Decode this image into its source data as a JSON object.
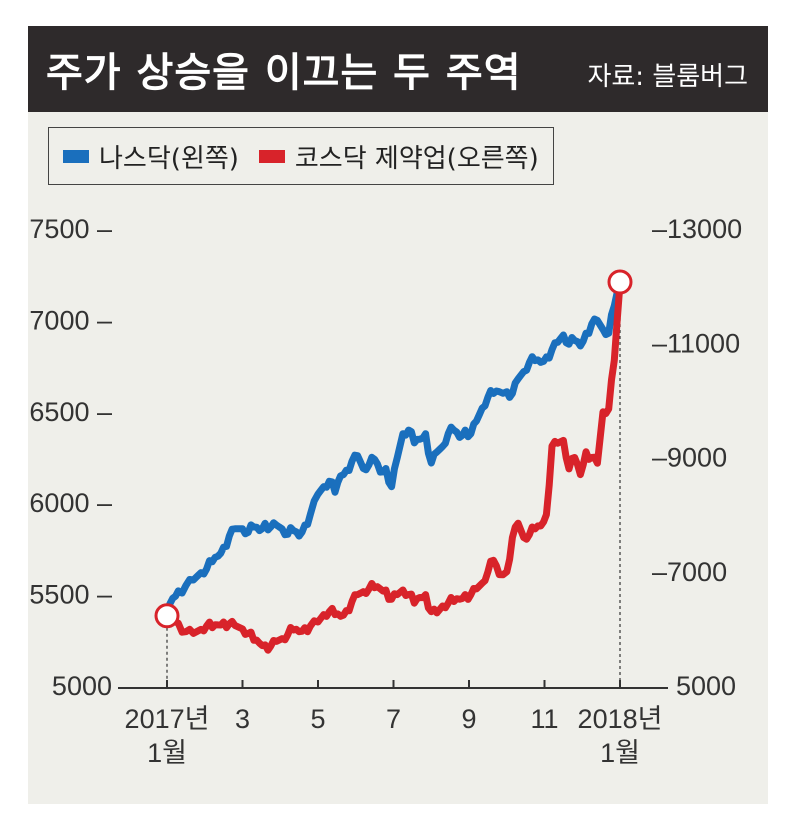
{
  "title": "주가 상승을 이끄는 두 주역",
  "source": "자료: 블룸버그",
  "colors": {
    "nasdaq": "#1a6fbd",
    "kosdaq_pharma": "#d8232a"
  },
  "chart_data": {
    "type": "line",
    "title": "주가 상승을 이끄는 두 주역",
    "legend_position": "top-left",
    "grid": false,
    "left_axis": {
      "min": 5000,
      "max": 7500,
      "ticks": [
        5000,
        5500,
        6000,
        6500,
        7000,
        7500
      ]
    },
    "right_axis": {
      "min": 5000,
      "max": 13000,
      "ticks": [
        5000,
        7000,
        9000,
        11000,
        13000
      ]
    },
    "x_ticks": [
      {
        "month": 1,
        "line1": "2017년",
        "line2": "1월"
      },
      {
        "month": 3,
        "line1": "3",
        "line2": ""
      },
      {
        "month": 5,
        "line1": "5",
        "line2": ""
      },
      {
        "month": 7,
        "line1": "7",
        "line2": ""
      },
      {
        "month": 9,
        "line1": "9",
        "line2": ""
      },
      {
        "month": 11,
        "line1": "11",
        "line2": ""
      },
      {
        "month": 13,
        "line1": "2018년",
        "line2": "1월"
      }
    ],
    "series": [
      {
        "name": "나스닥(왼쪽)",
        "axis": "left",
        "color": "#1a6fbd",
        "points": [
          [
            1.0,
            5400
          ],
          [
            1.15,
            5480
          ],
          [
            1.3,
            5520
          ],
          [
            1.5,
            5550
          ],
          [
            1.7,
            5580
          ],
          [
            1.9,
            5620
          ],
          [
            2.05,
            5640
          ],
          [
            2.2,
            5680
          ],
          [
            2.35,
            5710
          ],
          [
            2.5,
            5760
          ],
          [
            2.65,
            5820
          ],
          [
            2.8,
            5860
          ],
          [
            3.0,
            5860
          ],
          [
            3.15,
            5840
          ],
          [
            3.3,
            5870
          ],
          [
            3.45,
            5850
          ],
          [
            3.6,
            5890
          ],
          [
            3.75,
            5870
          ],
          [
            3.9,
            5880
          ],
          [
            4.05,
            5860
          ],
          [
            4.2,
            5830
          ],
          [
            4.35,
            5850
          ],
          [
            4.5,
            5820
          ],
          [
            4.65,
            5880
          ],
          [
            4.8,
            5940
          ],
          [
            5.0,
            6050
          ],
          [
            5.15,
            6090
          ],
          [
            5.3,
            6120
          ],
          [
            5.45,
            6060
          ],
          [
            5.6,
            6150
          ],
          [
            5.75,
            6180
          ],
          [
            5.9,
            6230
          ],
          [
            6.05,
            6260
          ],
          [
            6.2,
            6190
          ],
          [
            6.35,
            6210
          ],
          [
            6.5,
            6240
          ],
          [
            6.65,
            6170
          ],
          [
            6.8,
            6190
          ],
          [
            6.95,
            6090
          ],
          [
            7.1,
            6250
          ],
          [
            7.25,
            6380
          ],
          [
            7.4,
            6400
          ],
          [
            7.55,
            6330
          ],
          [
            7.7,
            6350
          ],
          [
            7.85,
            6380
          ],
          [
            8.0,
            6220
          ],
          [
            8.15,
            6280
          ],
          [
            8.3,
            6310
          ],
          [
            8.45,
            6380
          ],
          [
            8.6,
            6400
          ],
          [
            8.75,
            6360
          ],
          [
            8.9,
            6400
          ],
          [
            9.05,
            6380
          ],
          [
            9.2,
            6450
          ],
          [
            9.35,
            6520
          ],
          [
            9.5,
            6580
          ],
          [
            9.65,
            6600
          ],
          [
            9.8,
            6610
          ],
          [
            10.0,
            6610
          ],
          [
            10.15,
            6600
          ],
          [
            10.3,
            6680
          ],
          [
            10.45,
            6720
          ],
          [
            10.6,
            6770
          ],
          [
            10.75,
            6780
          ],
          [
            10.9,
            6770
          ],
          [
            11.05,
            6800
          ],
          [
            11.2,
            6840
          ],
          [
            11.35,
            6880
          ],
          [
            11.5,
            6920
          ],
          [
            11.65,
            6870
          ],
          [
            11.8,
            6890
          ],
          [
            11.95,
            6860
          ],
          [
            12.1,
            6930
          ],
          [
            12.25,
            6980
          ],
          [
            12.4,
            7000
          ],
          [
            12.55,
            6950
          ],
          [
            12.7,
            6930
          ],
          [
            12.85,
            7080
          ],
          [
            13.0,
            7210
          ]
        ]
      },
      {
        "name": "코스닥 제약업(오른쪽)",
        "axis": "right",
        "color": "#d8232a",
        "points": [
          [
            1.0,
            6230
          ],
          [
            1.15,
            6200
          ],
          [
            1.3,
            6100
          ],
          [
            1.5,
            5950
          ],
          [
            1.7,
            5920
          ],
          [
            1.9,
            5990
          ],
          [
            2.05,
            6050
          ],
          [
            2.2,
            6020
          ],
          [
            2.35,
            6070
          ],
          [
            2.5,
            6120
          ],
          [
            2.65,
            6090
          ],
          [
            2.8,
            6060
          ],
          [
            3.0,
            6000
          ],
          [
            3.15,
            5920
          ],
          [
            3.3,
            5800
          ],
          [
            3.45,
            5750
          ],
          [
            3.6,
            5720
          ],
          [
            3.75,
            5700
          ],
          [
            3.9,
            5780
          ],
          [
            4.05,
            5830
          ],
          [
            4.2,
            5900
          ],
          [
            4.35,
            5980
          ],
          [
            4.5,
            5950
          ],
          [
            4.65,
            6020
          ],
          [
            4.8,
            6050
          ],
          [
            5.0,
            6120
          ],
          [
            5.15,
            6250
          ],
          [
            5.3,
            6300
          ],
          [
            5.45,
            6250
          ],
          [
            5.6,
            6220
          ],
          [
            5.75,
            6320
          ],
          [
            5.9,
            6480
          ],
          [
            6.05,
            6600
          ],
          [
            6.2,
            6650
          ],
          [
            6.35,
            6700
          ],
          [
            6.5,
            6720
          ],
          [
            6.65,
            6700
          ],
          [
            6.8,
            6680
          ],
          [
            6.95,
            6520
          ],
          [
            7.1,
            6600
          ],
          [
            7.25,
            6680
          ],
          [
            7.4,
            6600
          ],
          [
            7.55,
            6450
          ],
          [
            7.7,
            6550
          ],
          [
            7.85,
            6600
          ],
          [
            8.0,
            6300
          ],
          [
            8.15,
            6280
          ],
          [
            8.3,
            6400
          ],
          [
            8.45,
            6450
          ],
          [
            8.6,
            6480
          ],
          [
            8.75,
            6520
          ],
          [
            8.9,
            6600
          ],
          [
            9.05,
            6600
          ],
          [
            9.2,
            6700
          ],
          [
            9.35,
            6800
          ],
          [
            9.5,
            7000
          ],
          [
            9.65,
            7200
          ],
          [
            9.8,
            6950
          ],
          [
            10.0,
            7000
          ],
          [
            10.15,
            7600
          ],
          [
            10.3,
            7850
          ],
          [
            10.45,
            7600
          ],
          [
            10.6,
            7650
          ],
          [
            10.75,
            7750
          ],
          [
            10.9,
            7800
          ],
          [
            11.05,
            8000
          ],
          [
            11.2,
            9200
          ],
          [
            11.35,
            9250
          ],
          [
            11.5,
            9300
          ],
          [
            11.65,
            8800
          ],
          [
            11.8,
            9000
          ],
          [
            11.95,
            8700
          ],
          [
            12.1,
            9100
          ],
          [
            12.25,
            9000
          ],
          [
            12.4,
            8900
          ],
          [
            12.55,
            9800
          ],
          [
            12.7,
            9850
          ],
          [
            12.85,
            10700
          ],
          [
            13.0,
            12050
          ]
        ]
      }
    ],
    "end_markers": [
      {
        "series": 0,
        "at": "end"
      },
      {
        "series": 1,
        "at": "start"
      }
    ]
  }
}
